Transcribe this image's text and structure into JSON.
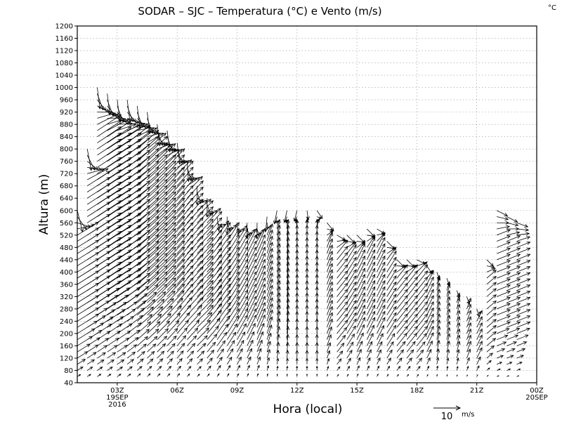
{
  "chart_data": {
    "type": "vector-field",
    "title": "SODAR – SJC – Temperatura (°C) e Vento (m/s)",
    "corner_unit": "°C",
    "xlabel": "Hora (local)",
    "ylabel": "Altura (m)",
    "ylim": [
      40,
      1200
    ],
    "xlim": [
      1.0,
      24.0
    ],
    "grid": true,
    "yticks": [
      40,
      80,
      120,
      160,
      200,
      240,
      280,
      320,
      360,
      400,
      440,
      480,
      520,
      560,
      600,
      640,
      680,
      720,
      760,
      800,
      840,
      880,
      920,
      960,
      1000,
      1040,
      1080,
      1120,
      1160,
      1200
    ],
    "ytick_labels": [
      "40",
      "80",
      "120",
      "160",
      "200",
      "240",
      "280",
      "320",
      "360",
      "400",
      "440",
      "480",
      "520",
      "560",
      "600",
      "640",
      "680",
      "720",
      "760",
      "800",
      "840",
      "880",
      "920",
      "960",
      "1000",
      "1040",
      "1080",
      "1120",
      "1160",
      "1200"
    ],
    "xticks": [
      {
        "hour": 3,
        "lines": [
          "03Z",
          "19SEP",
          "2016"
        ]
      },
      {
        "hour": 6,
        "lines": [
          "06Z"
        ]
      },
      {
        "hour": 9,
        "lines": [
          "09Z"
        ]
      },
      {
        "hour": 12,
        "lines": [
          "12Z"
        ]
      },
      {
        "hour": 15,
        "lines": [
          "15Z"
        ]
      },
      {
        "hour": 18,
        "lines": [
          "18Z"
        ]
      },
      {
        "hour": 21,
        "lines": [
          "21Z"
        ]
      },
      {
        "hour": 24,
        "lines": [
          "00Z",
          "20SEP"
        ]
      }
    ],
    "reference_vector": {
      "magnitude": 10,
      "label": "10",
      "unit": "m/s"
    },
    "profile_spacing_h": 0.5,
    "level_step_m": 20,
    "profiles": [
      {
        "hour": 1.0,
        "top": 600,
        "u0": 8,
        "v0": 5,
        "u1": 2,
        "v1": -8
      },
      {
        "hour": 2.0,
        "top": 1000,
        "u0": 9,
        "v0": 6,
        "u1": 1,
        "v1": -8
      },
      {
        "hour": 3.0,
        "top": 960,
        "u0": 9,
        "v0": 6,
        "u1": 1,
        "v1": -8
      },
      {
        "hour": 4.0,
        "top": 940,
        "u0": 8,
        "v0": 7,
        "u1": 1,
        "v1": -8
      },
      {
        "hour": 5.0,
        "top": 880,
        "u0": 7,
        "v0": 7,
        "u1": 1,
        "v1": -8
      },
      {
        "hour": 6.0,
        "top": 820,
        "u0": 6,
        "v0": 7,
        "u1": 1,
        "v1": -8
      },
      {
        "hour": 7.0,
        "top": 680,
        "u0": 6,
        "v0": 6,
        "u1": 0,
        "v1": -7
      },
      {
        "hour": 8.0,
        "top": 590,
        "u0": 5,
        "v0": 7,
        "u1": 0,
        "v1": -7
      },
      {
        "hour": 9.0,
        "top": 570,
        "u0": 4,
        "v0": 7,
        "u1": 0,
        "v1": -6
      },
      {
        "hour": 10.0,
        "top": 560,
        "u0": 3,
        "v0": 7,
        "u1": 0,
        "v1": -6
      },
      {
        "hour": 11.0,
        "top": 600,
        "u0": 1,
        "v0": 6,
        "u1": -1,
        "v1": -5
      },
      {
        "hour": 12.0,
        "top": 600,
        "u0": 0,
        "v0": 6,
        "u1": -1,
        "v1": -4
      },
      {
        "hour": 13.0,
        "top": 600,
        "u0": 0,
        "v0": 6,
        "u1": 2,
        "v1": -3
      },
      {
        "hour": 14.0,
        "top": 530,
        "u0": 4,
        "v0": 5,
        "u1": 3,
        "v1": -3
      },
      {
        "hour": 15.0,
        "top": 520,
        "u0": 3,
        "v0": 6,
        "u1": 3,
        "v1": -3
      },
      {
        "hour": 16.0,
        "top": 550,
        "u0": 3,
        "v0": 6,
        "u1": 3,
        "v1": -3
      },
      {
        "hour": 17.0,
        "top": 440,
        "u0": 4,
        "v0": 5,
        "u1": 3,
        "v1": -3
      },
      {
        "hour": 18.0,
        "top": 450,
        "u0": 4,
        "v0": 5,
        "u1": 3,
        "v1": -3
      },
      {
        "hour": 19.0,
        "top": 400,
        "u0": 1,
        "v0": 5,
        "u1": 1,
        "v1": -3
      },
      {
        "hour": 20.0,
        "top": 340,
        "u0": 1,
        "v0": 4,
        "u1": 1,
        "v1": -3
      },
      {
        "hour": 21.0,
        "top": 280,
        "u0": 2,
        "v0": 4,
        "u1": 1,
        "v1": -3
      },
      {
        "hour": 22.0,
        "top": 600,
        "u0": 5,
        "v0": 2,
        "u1": 4,
        "v1": -2
      },
      {
        "hour": 23.0,
        "top": 570,
        "u0": 5,
        "v0": 2,
        "u1": 4,
        "v1": -2
      }
    ]
  }
}
